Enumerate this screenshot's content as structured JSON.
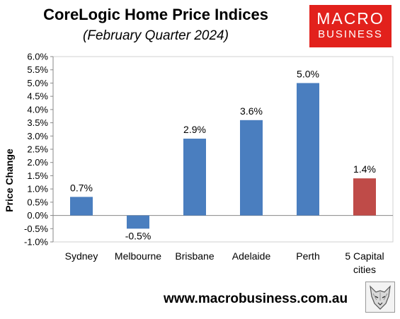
{
  "header": {
    "title": "CoreLogic Home Price Indices",
    "subtitle": "(February Quarter 2024)"
  },
  "logo": {
    "line1": "MACRO",
    "line2": "BUSINESS",
    "color": "#e2211c"
  },
  "footer": {
    "url": "www.macrobusiness.com.au"
  },
  "chart_data": {
    "type": "bar",
    "categories": [
      "Sydney",
      "Melbourne",
      "Brisbane",
      "Adelaide",
      "Perth",
      "5 Capital cities"
    ],
    "values": [
      0.7,
      -0.5,
      2.9,
      3.6,
      5.0,
      1.4
    ],
    "data_labels": [
      "0.7%",
      "-0.5%",
      "2.9%",
      "3.6%",
      "5.0%",
      "1.4%"
    ],
    "bar_colors": [
      "#4a7ebf",
      "#4a7ebf",
      "#4a7ebf",
      "#4a7ebf",
      "#4a7ebf",
      "#bf4b48"
    ],
    "title": "CoreLogic Home Price Indices",
    "subtitle": "(February Quarter 2024)",
    "xlabel": "",
    "ylabel": "Price Change",
    "ylim": [
      -1.0,
      6.0
    ],
    "yticks": [
      -1.0,
      -0.5,
      0.0,
      0.5,
      1.0,
      1.5,
      2.0,
      2.5,
      3.0,
      3.5,
      4.0,
      4.5,
      5.0,
      5.5,
      6.0
    ],
    "ytick_labels": [
      "-1.0%",
      "-0.5%",
      "0.0%",
      "0.5%",
      "1.0%",
      "1.5%",
      "2.0%",
      "2.5%",
      "3.0%",
      "3.5%",
      "4.0%",
      "4.5%",
      "5.0%",
      "5.5%",
      "6.0%"
    ],
    "grid": false,
    "legend": "none"
  }
}
